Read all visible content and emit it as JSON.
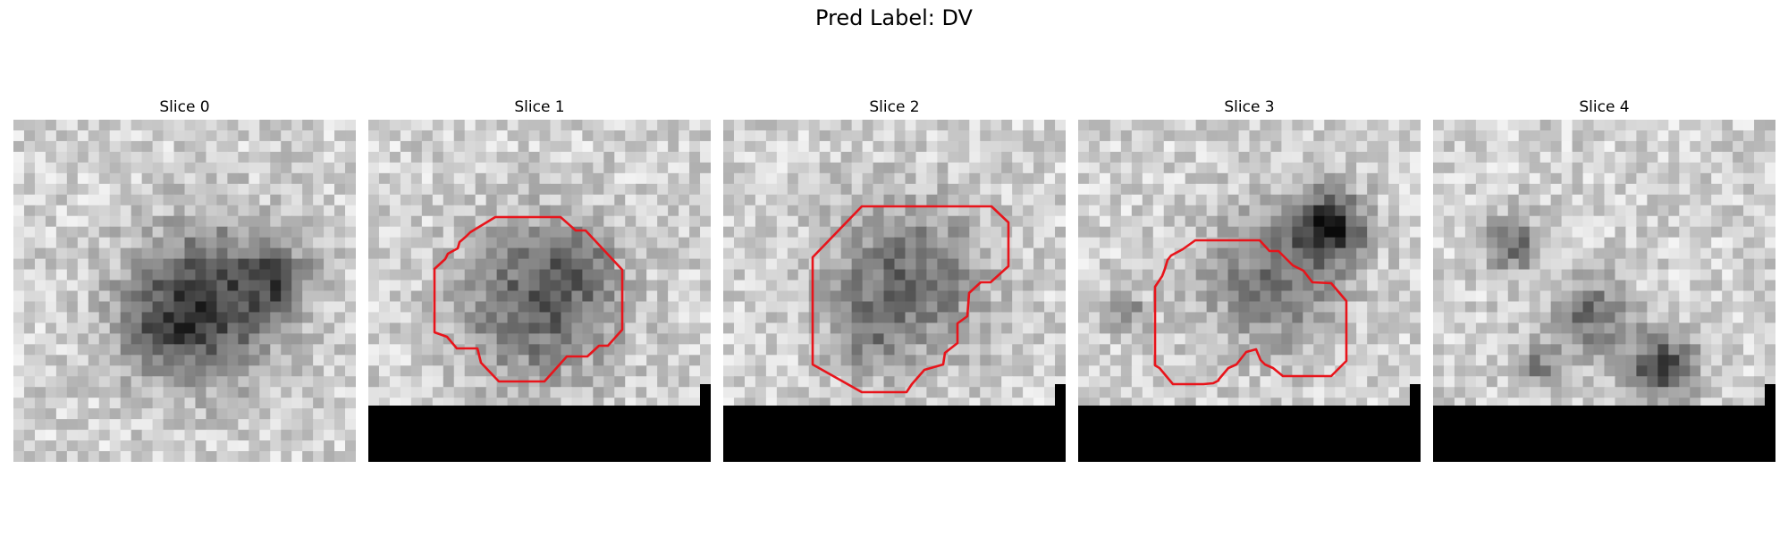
{
  "figure": {
    "title": "Pred Label: DV"
  },
  "slices": [
    {
      "title": "Slice 0",
      "has_contour": false,
      "has_black_band": false,
      "seed": 11
    },
    {
      "title": "Slice 1",
      "has_contour": true,
      "has_black_band": true,
      "seed": 23
    },
    {
      "title": "Slice 2",
      "has_contour": true,
      "has_black_band": true,
      "seed": 37
    },
    {
      "title": "Slice 3",
      "has_contour": true,
      "has_black_band": true,
      "seed": 53
    },
    {
      "title": "Slice 4",
      "has_contour": false,
      "has_black_band": true,
      "seed": 71
    }
  ],
  "colors": {
    "contour": "#e8141b",
    "background": "#ffffff",
    "mask": "#000000"
  }
}
